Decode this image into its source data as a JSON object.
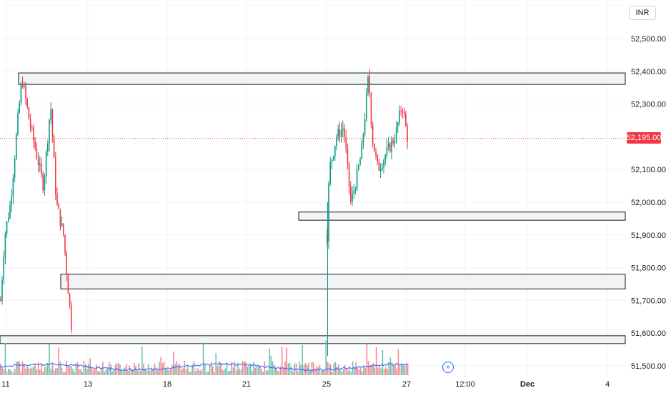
{
  "chart": {
    "currency": "INR",
    "current_price_label": "52,195.00",
    "current_price": 52195,
    "price_axis": {
      "ticks": [
        {
          "label": "52,500.00",
          "value": 52500
        },
        {
          "label": "52,400.00",
          "value": 52400
        },
        {
          "label": "52,300.00",
          "value": 52300
        },
        {
          "label": "52,195.00",
          "value": 52195,
          "hidden": true
        },
        {
          "label": "52,100.00",
          "value": 52100
        },
        {
          "label": "52,000.00",
          "value": 52000
        },
        {
          "label": "51,900.00",
          "value": 51900
        },
        {
          "label": "51,800.00",
          "value": 51800
        },
        {
          "label": "51,700.00",
          "value": 51700
        },
        {
          "label": "51,600.00",
          "value": 51600
        },
        {
          "label": "51,500.00",
          "value": 51500
        }
      ]
    },
    "time_axis": {
      "ticks": [
        {
          "label": "11",
          "bold": false
        },
        {
          "label": "13",
          "bold": false
        },
        {
          "label": "18",
          "bold": false
        },
        {
          "label": "21",
          "bold": false
        },
        {
          "label": "25",
          "bold": false
        },
        {
          "label": "27",
          "bold": false
        },
        {
          "label": "12:00",
          "bold": false
        },
        {
          "label": "Dec",
          "bold": true
        },
        {
          "label": "4",
          "bold": false
        }
      ]
    },
    "zones": [
      {
        "name": "resistance-zone-top",
        "price_high": 52395,
        "price_low": 52360
      },
      {
        "name": "support-zone-mid",
        "price_high": 51970,
        "price_low": 51945
      },
      {
        "name": "demand-zone-lower",
        "price_high": 51780,
        "price_low": 51735
      },
      {
        "name": "demand-zone-bottom",
        "price_high": 51592,
        "price_low": 51568
      }
    ],
    "colors": {
      "up": "#089981",
      "down": "#f23645",
      "volume_up": "#6dc2b3",
      "volume_down": "#f7868f",
      "volume_ma": "#2962ff",
      "grid": "#f0f3fa",
      "zone_fill": "#f2f3f5",
      "zone_stroke": "#131722"
    }
  }
}
